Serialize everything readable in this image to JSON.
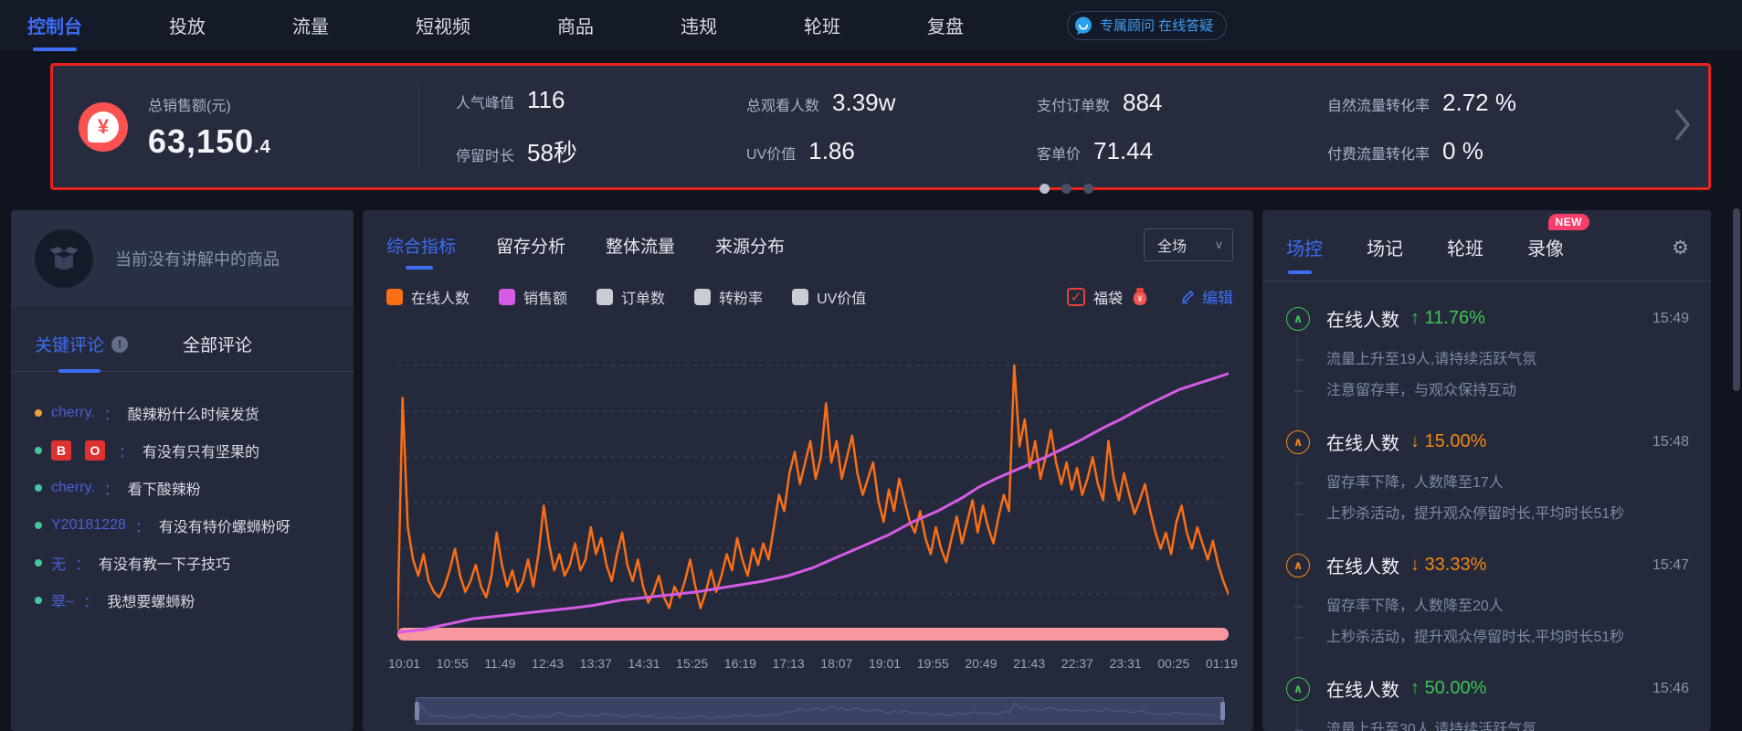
{
  "colors": {
    "accent": "#3E6CF5",
    "annotation_red": "#E8231D",
    "sale_icon_red": "#FA5151",
    "series_orange": "#FA6E16",
    "series_magenta": "#D45BE4",
    "legend_gray": "#C9CDD6",
    "event_green": "#3FC453",
    "event_orange": "#F5870F",
    "fudai_band_pink": "#F8989E",
    "new_badge_pink": "#FA3E6C",
    "comment_green_bullet": "#43C79C",
    "comment_orange_bullet": "#F0A03C",
    "comment_badge_red": "#E03131"
  },
  "nav": {
    "items": [
      {
        "label": "控制台",
        "active": true
      },
      {
        "label": "投放",
        "active": false
      },
      {
        "label": "流量",
        "active": false
      },
      {
        "label": "短视频",
        "active": false
      },
      {
        "label": "商品",
        "active": false
      },
      {
        "label": "违规",
        "active": false
      },
      {
        "label": "轮班",
        "active": false
      },
      {
        "label": "复盘",
        "active": false
      }
    ],
    "badge": {
      "label": "专属顾问 在线答疑"
    }
  },
  "stats_bar": {
    "main": {
      "label": "总销售额(元)",
      "value_int": "63,150",
      "value_dec": ".4"
    },
    "columns": [
      {
        "top": {
          "label": "人气峰值",
          "value": "116"
        },
        "bottom": {
          "label": "停留时长",
          "value": "58秒"
        }
      },
      {
        "top": {
          "label": "总观看人数",
          "value": "3.39w"
        },
        "bottom": {
          "label": "UV价值",
          "value": "1.86"
        }
      },
      {
        "top": {
          "label": "支付订单数",
          "value": "884"
        },
        "bottom": {
          "label": "客单价",
          "value": "71.44"
        }
      },
      {
        "top": {
          "label": "自然流量转化率",
          "value": "2.72 %"
        },
        "bottom": {
          "label": "付费流量转化率",
          "value": "0 %"
        }
      }
    ],
    "dots": {
      "count": 3,
      "active_index": 0
    }
  },
  "left_panel": {
    "product_card": {
      "text": "当前没有讲解中的商品"
    },
    "tabs": [
      {
        "label": "关键评论",
        "active": true,
        "info_icon": true
      },
      {
        "label": "全部评论",
        "active": false,
        "info_icon": false
      }
    ],
    "separator": "：",
    "comments": [
      {
        "user": "cherry.",
        "badges": [],
        "text": "酸辣粉什么时候发货",
        "bullet": "#F0A03C"
      },
      {
        "user": "",
        "badges": [
          "B",
          "O"
        ],
        "text": "有没有只有坚果的",
        "bullet": "#43C79C"
      },
      {
        "user": "cherry.",
        "badges": [],
        "text": "看下酸辣粉",
        "bullet": "#43C79C"
      },
      {
        "user": "Y20181228",
        "badges": [],
        "text": "有没有特价螺蛳粉呀",
        "bullet": "#43C79C"
      },
      {
        "user": "无",
        "badges": [],
        "text": "有没有教一下子技巧",
        "bullet": "#43C79C"
      },
      {
        "user": "翠~",
        "badges": [],
        "text": "我想要螺蛳粉",
        "bullet": "#43C79C"
      }
    ]
  },
  "center_panel": {
    "tabs": [
      {
        "label": "综合指标",
        "active": true
      },
      {
        "label": "留存分析",
        "active": false
      },
      {
        "label": "整体流量",
        "active": false
      },
      {
        "label": "来源分布",
        "active": false
      }
    ],
    "range_select": {
      "value": "全场"
    },
    "legend": [
      {
        "label": "在线人数",
        "color": "#FA6E16"
      },
      {
        "label": "销售额",
        "color": "#D45BE4"
      },
      {
        "label": "订单数",
        "color": "#C9CDD6"
      },
      {
        "label": "转粉率",
        "color": "#C9CDD6"
      },
      {
        "label": "UV价值",
        "color": "#C9CDD6"
      }
    ],
    "fudai": {
      "label": "福袋",
      "checked": true
    },
    "edit": {
      "label": "编辑"
    }
  },
  "chart_data": {
    "type": "line",
    "title": "",
    "xlabel": "time",
    "ylabel": "",
    "ylim": [
      0,
      100
    ],
    "grid": "dashed-horizontal",
    "legend_position": "top-left",
    "x_labels": [
      "10:01",
      "10:55",
      "11:49",
      "12:43",
      "13:37",
      "14:31",
      "15:25",
      "16:19",
      "17:13",
      "18:07",
      "19:01",
      "19:55",
      "20:49",
      "21:43",
      "22:37",
      "23:31",
      "00:25",
      "01:19"
    ],
    "series": [
      {
        "name": "在线人数",
        "color": "#FA6E16",
        "values": [
          2,
          88,
          40,
          28,
          22,
          30,
          20,
          16,
          14,
          18,
          24,
          32,
          22,
          16,
          20,
          26,
          18,
          14,
          22,
          38,
          26,
          18,
          24,
          16,
          20,
          28,
          18,
          30,
          48,
          34,
          24,
          30,
          22,
          26,
          34,
          24,
          28,
          40,
          30,
          36,
          26,
          20,
          30,
          38,
          26,
          20,
          28,
          18,
          12,
          16,
          22,
          14,
          10,
          18,
          14,
          20,
          28,
          18,
          10,
          16,
          24,
          16,
          22,
          30,
          24,
          36,
          28,
          22,
          32,
          26,
          34,
          28,
          40,
          52,
          46,
          60,
          68,
          56,
          64,
          72,
          58,
          66,
          86,
          64,
          72,
          58,
          66,
          74,
          60,
          52,
          58,
          64,
          50,
          42,
          54,
          46,
          58,
          50,
          42,
          38,
          46,
          36,
          30,
          40,
          32,
          27,
          36,
          44,
          34,
          42,
          50,
          38,
          48,
          40,
          34,
          44,
          52,
          46,
          100,
          70,
          80,
          62,
          72,
          58,
          66,
          76,
          64,
          56,
          64,
          54,
          62,
          52,
          58,
          66,
          56,
          50,
          72,
          58,
          50,
          60,
          52,
          45,
          50,
          56,
          46,
          38,
          32,
          38,
          30,
          42,
          48,
          38,
          32,
          40,
          34,
          28,
          35,
          26,
          20,
          15
        ]
      },
      {
        "name": "销售额",
        "color": "#D45BE4",
        "points": [
          [
            0,
            1
          ],
          [
            0.03,
            2
          ],
          [
            0.06,
            4
          ],
          [
            0.09,
            6
          ],
          [
            0.12,
            7
          ],
          [
            0.15,
            8
          ],
          [
            0.18,
            9
          ],
          [
            0.21,
            10
          ],
          [
            0.235,
            11
          ],
          [
            0.27,
            13
          ],
          [
            0.3,
            14
          ],
          [
            0.33,
            15
          ],
          [
            0.36,
            16
          ],
          [
            0.4,
            18
          ],
          [
            0.44,
            20
          ],
          [
            0.47,
            22
          ],
          [
            0.5,
            25
          ],
          [
            0.53,
            29
          ],
          [
            0.56,
            33
          ],
          [
            0.59,
            37
          ],
          [
            0.62,
            42
          ],
          [
            0.65,
            46
          ],
          [
            0.68,
            51
          ],
          [
            0.7,
            55
          ],
          [
            0.72,
            58
          ],
          [
            0.75,
            62
          ],
          [
            0.78,
            66
          ],
          [
            0.8,
            69
          ],
          [
            0.82,
            72
          ],
          [
            0.85,
            77
          ],
          [
            0.87,
            80
          ],
          [
            0.9,
            85
          ],
          [
            0.92,
            88
          ],
          [
            0.94,
            91
          ],
          [
            0.96,
            93
          ],
          [
            0.98,
            95
          ],
          [
            1.0,
            97
          ]
        ]
      }
    ],
    "fudai_band": {
      "label": "福袋",
      "color": "#F8989E",
      "coverage": "full-width-bottom"
    }
  },
  "right_panel": {
    "tabs": [
      {
        "label": "场控",
        "active": true,
        "badge": ""
      },
      {
        "label": "场记",
        "active": false,
        "badge": ""
      },
      {
        "label": "轮班",
        "active": false,
        "badge": ""
      },
      {
        "label": "录像",
        "active": false,
        "badge": "NEW"
      }
    ],
    "events": [
      {
        "title": "在线人数",
        "arrow": "↑",
        "pct": "11.76%",
        "direction": "up",
        "time": "15:49",
        "tips": [
          "流量上升至19人,请持续活跃气氛",
          "注意留存率，与观众保持互动"
        ]
      },
      {
        "title": "在线人数",
        "arrow": "↓",
        "pct": "15.00%",
        "direction": "down",
        "time": "15:48",
        "tips": [
          "留存率下降，人数降至17人",
          "上秒杀活动，提升观众停留时长,平均时长51秒"
        ]
      },
      {
        "title": "在线人数",
        "arrow": "↓",
        "pct": "33.33%",
        "direction": "down",
        "time": "15:47",
        "tips": [
          "留存率下降，人数降至20人",
          "上秒杀活动，提升观众停留时长,平均时长51秒"
        ]
      },
      {
        "title": "在线人数",
        "arrow": "↑",
        "pct": "50.00%",
        "direction": "up",
        "time": "15:46",
        "tips": [
          "流量上升至30人,请持续活跃气氛"
        ]
      }
    ]
  }
}
